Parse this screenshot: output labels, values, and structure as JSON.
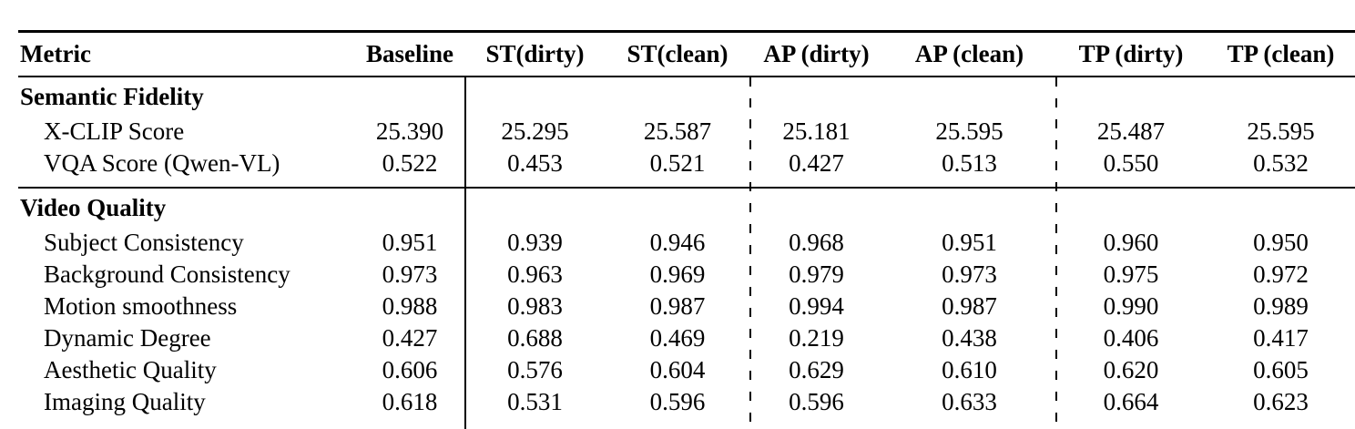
{
  "colors": {
    "text": "#000000",
    "background": "#ffffff",
    "rule": "#000000"
  },
  "table": {
    "columns": [
      {
        "label": "Metric"
      },
      {
        "label": "Baseline"
      },
      {
        "label": "ST(dirty)"
      },
      {
        "label": "ST(clean)"
      },
      {
        "label": "AP (dirty)"
      },
      {
        "label": "AP (clean)"
      },
      {
        "label": "TP (dirty)"
      },
      {
        "label": "TP (clean)"
      }
    ],
    "sections": [
      {
        "title": "Semantic Fidelity",
        "rows": [
          {
            "metric": "X-CLIP Score",
            "values": [
              "25.390",
              "25.295",
              "25.587",
              "25.181",
              "25.595",
              "25.487",
              "25.595"
            ]
          },
          {
            "metric": "VQA Score (Qwen-VL)",
            "values": [
              "0.522",
              "0.453",
              "0.521",
              "0.427",
              "0.513",
              "0.550",
              "0.532"
            ]
          }
        ]
      },
      {
        "title": "Video Quality",
        "rows": [
          {
            "metric": "Subject Consistency",
            "values": [
              "0.951",
              "0.939",
              "0.946",
              "0.968",
              "0.951",
              "0.960",
              "0.950"
            ]
          },
          {
            "metric": "Background Consistency",
            "values": [
              "0.973",
              "0.963",
              "0.969",
              "0.979",
              "0.973",
              "0.975",
              "0.972"
            ]
          },
          {
            "metric": "Motion smoothness",
            "values": [
              "0.988",
              "0.983",
              "0.987",
              "0.994",
              "0.987",
              "0.990",
              "0.989"
            ]
          },
          {
            "metric": "Dynamic Degree",
            "values": [
              "0.427",
              "0.688",
              "0.469",
              "0.219",
              "0.438",
              "0.406",
              "0.417"
            ]
          },
          {
            "metric": "Aesthetic Quality",
            "values": [
              "0.606",
              "0.576",
              "0.604",
              "0.629",
              "0.610",
              "0.620",
              "0.605"
            ]
          },
          {
            "metric": "Imaging Quality",
            "values": [
              "0.618",
              "0.531",
              "0.596",
              "0.596",
              "0.633",
              "0.664",
              "0.623"
            ]
          }
        ]
      }
    ]
  }
}
